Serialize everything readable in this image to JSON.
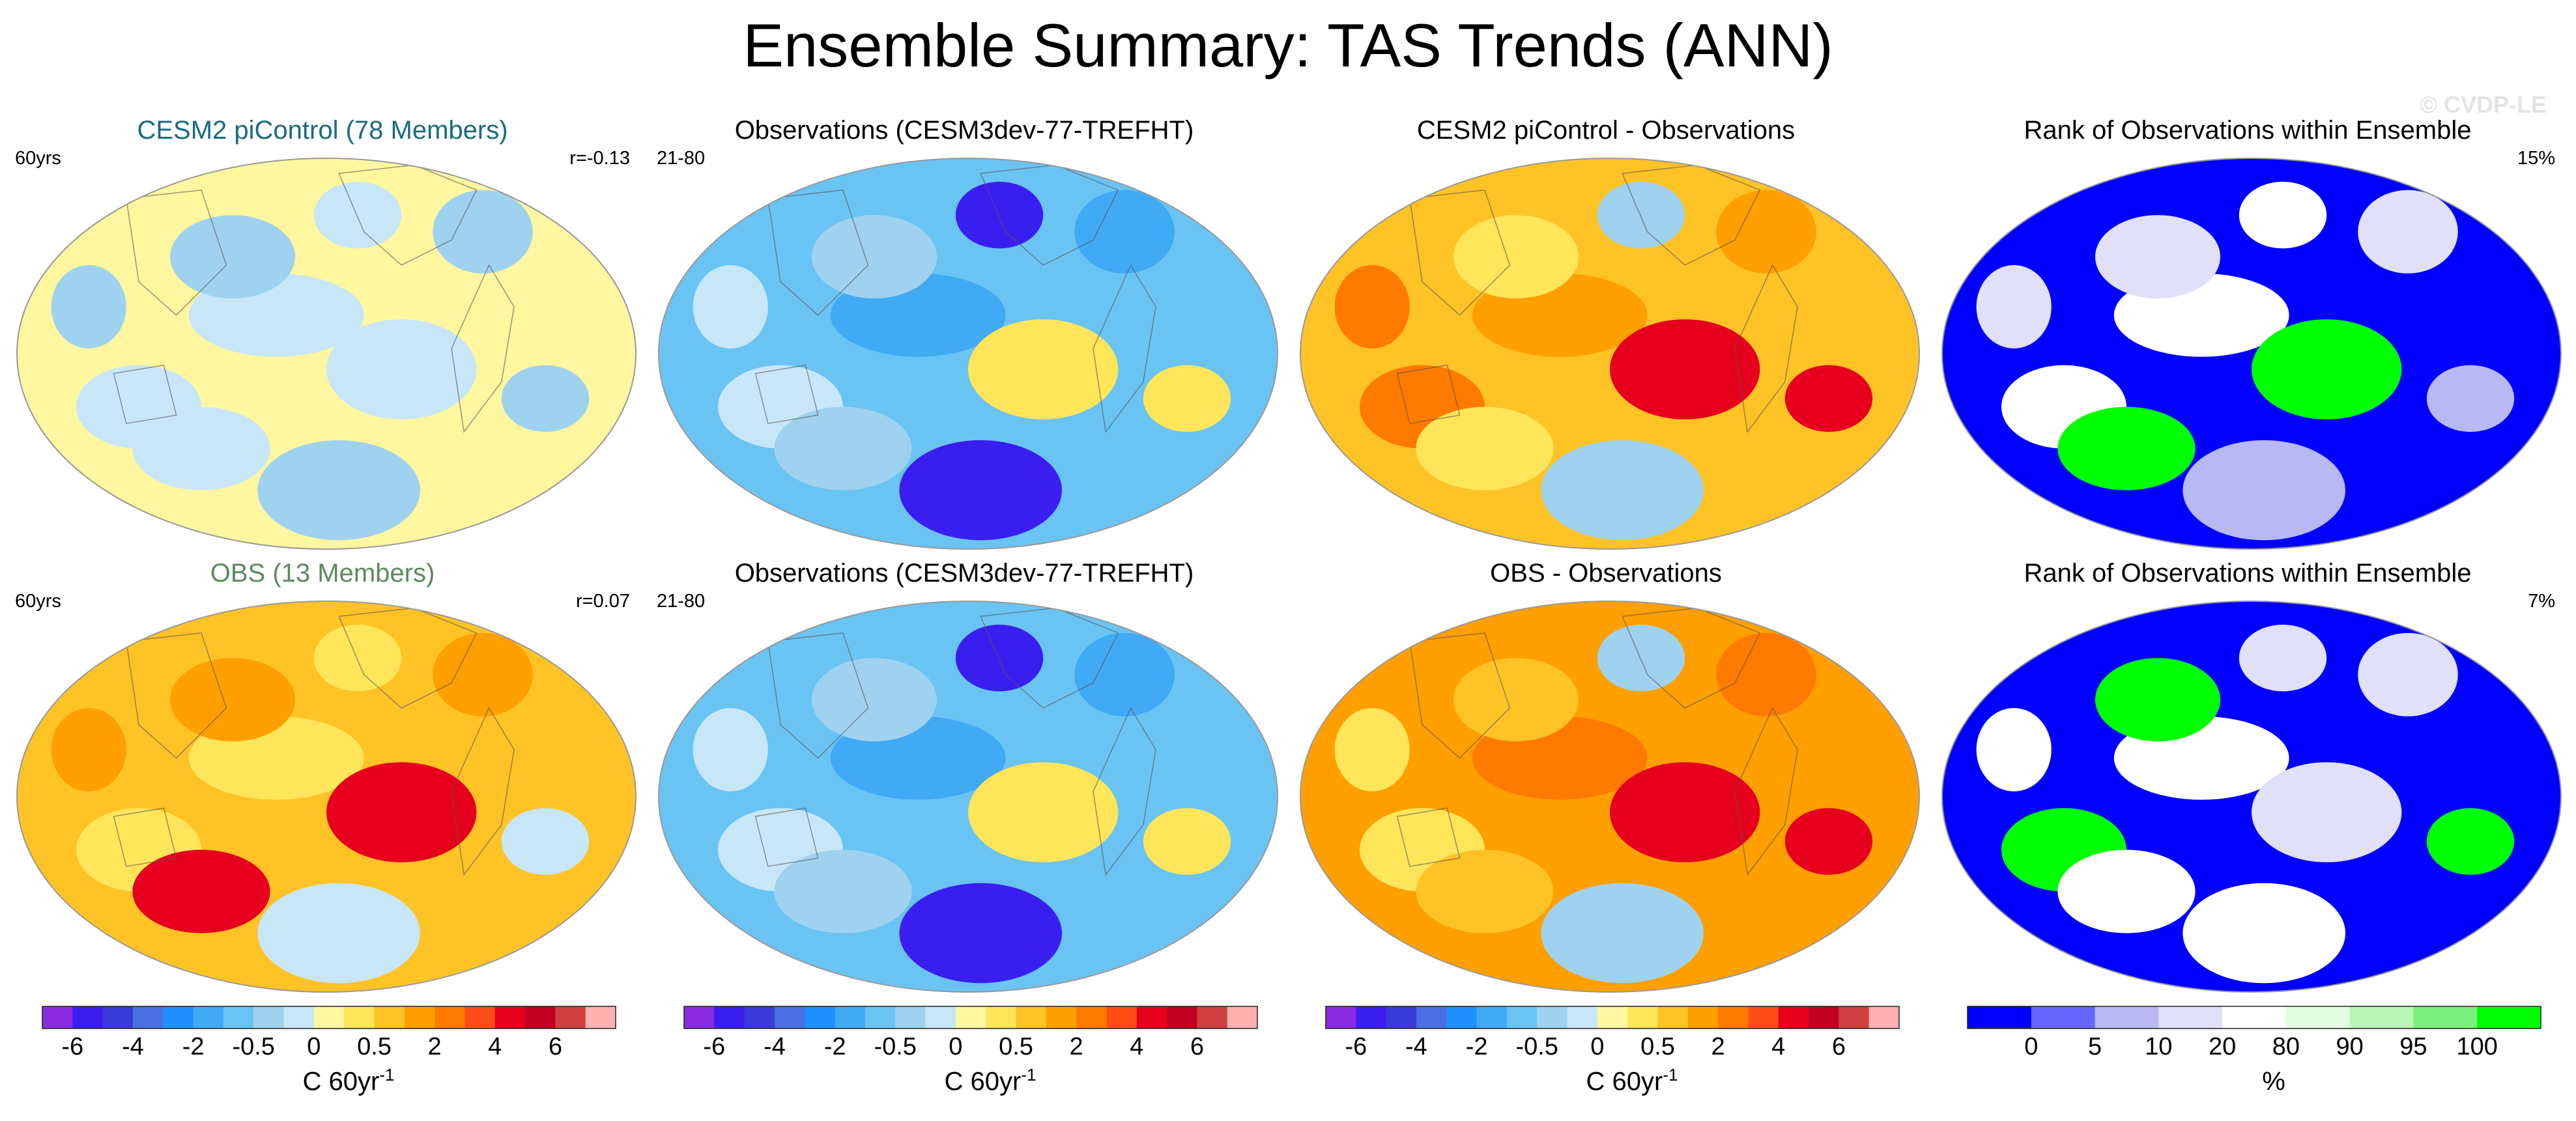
{
  "title": "Ensemble Summary: TAS Trends (ANN)",
  "copyright": "© CVDP-LE",
  "colors": {
    "trend_scale": [
      "#8a2be2",
      "#3a1ef0",
      "#3a3ad8",
      "#4a6fe0",
      "#1e90ff",
      "#41aaf5",
      "#69c4f4",
      "#9fd2ef",
      "#c7e6f7",
      "#fff6a0",
      "#ffe55a",
      "#ffc326",
      "#ff9f00",
      "#ff7a00",
      "#ff4d18",
      "#e6001e",
      "#c00020",
      "#d04040",
      "#ffb0b0"
    ],
    "rank_scale": [
      "#0000ff",
      "#6666ff",
      "#b8b8f5",
      "#e0e0f8",
      "#ffffff",
      "#e2fde2",
      "#b8f6b8",
      "#7cf07c",
      "#00ff00"
    ]
  },
  "chart_data": [
    {
      "type": "heatmap",
      "title": "CESM2 piControl (78 Members)",
      "title_color": "#1a6b80",
      "left_label": "60yrs",
      "right_label": "r=-0.13",
      "base_color": "#fff6a0",
      "patches": [
        "#c7e6f7",
        "#9fd2ef"
      ],
      "land": true
    },
    {
      "type": "heatmap",
      "title": "Observations (CESM3dev-77-TREFHT)",
      "title_color": "#000000",
      "left_label": "21-80",
      "right_label": "",
      "base_color": "#69c4f4",
      "patches": [
        "#41aaf5",
        "#9fd2ef",
        "#ffe55a",
        "#3a1ef0",
        "#c7e6f7"
      ],
      "land": true
    },
    {
      "type": "heatmap",
      "title": "CESM2 piControl - Observations",
      "title_color": "#000000",
      "left_label": "",
      "right_label": "",
      "base_color": "#ffc326",
      "patches": [
        "#ff9f00",
        "#ffe55a",
        "#e6001e",
        "#9fd2ef",
        "#ff7a00"
      ],
      "land": true
    },
    {
      "type": "heatmap",
      "title": "Rank of Observations within Ensemble",
      "title_color": "#000000",
      "left_label": "",
      "right_label": "15%",
      "base_color": "#0000ff",
      "patches": [
        "#ffffff",
        "#e0e0f8",
        "#00ff00",
        "#b8b8f5"
      ],
      "land": false
    },
    {
      "type": "heatmap",
      "title": "OBS (13 Members)",
      "title_color": "#5e8a5e",
      "left_label": "60yrs",
      "right_label": "r=0.07",
      "base_color": "#ffc326",
      "patches": [
        "#ffe55a",
        "#ff9f00",
        "#e6001e",
        "#c7e6f7"
      ],
      "land": true
    },
    {
      "type": "heatmap",
      "title": "Observations (CESM3dev-77-TREFHT)",
      "title_color": "#000000",
      "left_label": "21-80",
      "right_label": "",
      "base_color": "#69c4f4",
      "patches": [
        "#41aaf5",
        "#9fd2ef",
        "#ffe55a",
        "#3a1ef0",
        "#c7e6f7"
      ],
      "land": true
    },
    {
      "type": "heatmap",
      "title": "OBS - Observations",
      "title_color": "#000000",
      "left_label": "",
      "right_label": "",
      "base_color": "#ff9f00",
      "patches": [
        "#ff7a00",
        "#ffc326",
        "#e6001e",
        "#9fd2ef",
        "#ffe55a"
      ],
      "land": true
    },
    {
      "type": "heatmap",
      "title": "Rank of Observations within Ensemble",
      "title_color": "#000000",
      "left_label": "",
      "right_label": "7%",
      "base_color": "#0000ff",
      "patches": [
        "#ffffff",
        "#00ff00",
        "#e0e0f8"
      ],
      "land": false
    }
  ],
  "colorbars": [
    {
      "kind": "trend",
      "tick_labels": [
        "-6",
        "-4",
        "-2",
        "-0.5",
        "0",
        "0.5",
        "2",
        "4",
        "6"
      ],
      "units_main": "C 60yr",
      "units_sup": "-1"
    },
    {
      "kind": "trend",
      "tick_labels": [
        "-6",
        "-4",
        "-2",
        "-0.5",
        "0",
        "0.5",
        "2",
        "4",
        "6"
      ],
      "units_main": "C 60yr",
      "units_sup": "-1"
    },
    {
      "kind": "trend",
      "tick_labels": [
        "-6",
        "-4",
        "-2",
        "-0.5",
        "0",
        "0.5",
        "2",
        "4",
        "6"
      ],
      "units_main": "C 60yr",
      "units_sup": "-1"
    },
    {
      "kind": "rank",
      "tick_labels": [
        "0",
        "5",
        "10",
        "20",
        "80",
        "90",
        "95",
        "100"
      ],
      "units_main": "%",
      "units_sup": ""
    }
  ]
}
